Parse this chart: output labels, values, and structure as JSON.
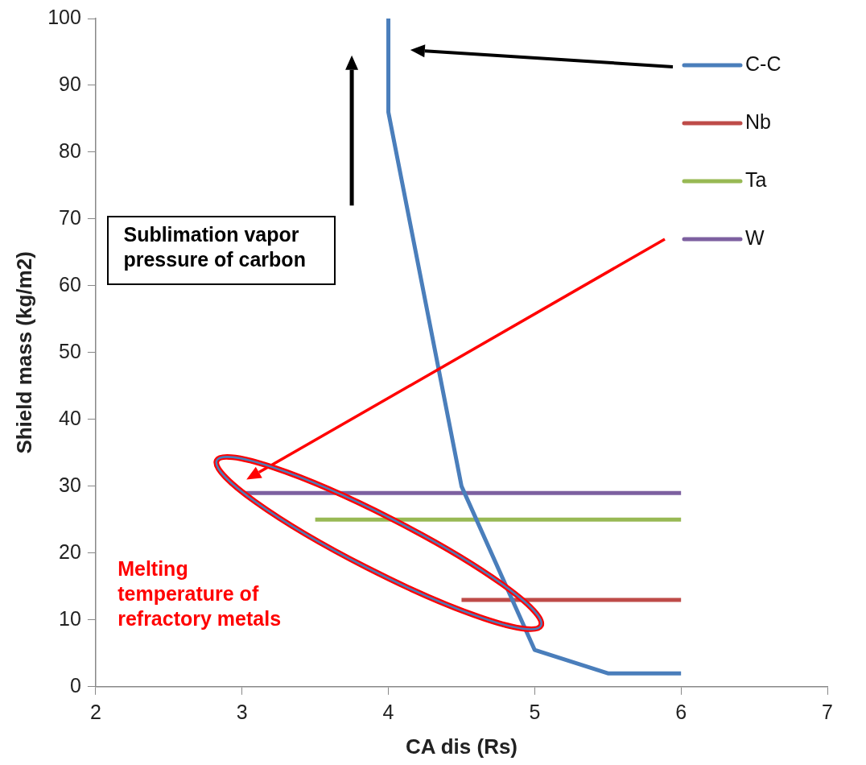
{
  "chart_data": {
    "type": "line",
    "xlabel": "CA dis (Rs)",
    "ylabel": "Shield mass (kg/m2)",
    "xlim": [
      2,
      7
    ],
    "xticks": [
      2,
      3,
      4,
      5,
      6,
      7
    ],
    "ylim": [
      0,
      100
    ],
    "yticks": [
      0,
      10,
      20,
      30,
      40,
      50,
      60,
      70,
      80,
      90,
      100
    ],
    "legend": "top right",
    "marker": "none",
    "line_style": "solid",
    "series": [
      {
        "name": "C-C",
        "color": "#4a7ebb",
        "x": [
          4,
          4,
          4.5,
          5,
          5.5,
          6
        ],
        "values": [
          100,
          86,
          30,
          5.5,
          2,
          2
        ]
      },
      {
        "name": "Nb",
        "color": "#be4b48",
        "x": [
          4.5,
          6
        ],
        "values": [
          13,
          13
        ]
      },
      {
        "name": "Ta",
        "color": "#98b954",
        "x": [
          3.5,
          6
        ],
        "values": [
          25,
          25
        ]
      },
      {
        "name": "W",
        "color": "#7d60a0",
        "x": [
          3,
          6
        ],
        "values": [
          29,
          29
        ]
      }
    ],
    "annotations": [
      "Sublimation vapor pressure of carbon",
      "Melting temperature of refractory metals"
    ]
  }
}
